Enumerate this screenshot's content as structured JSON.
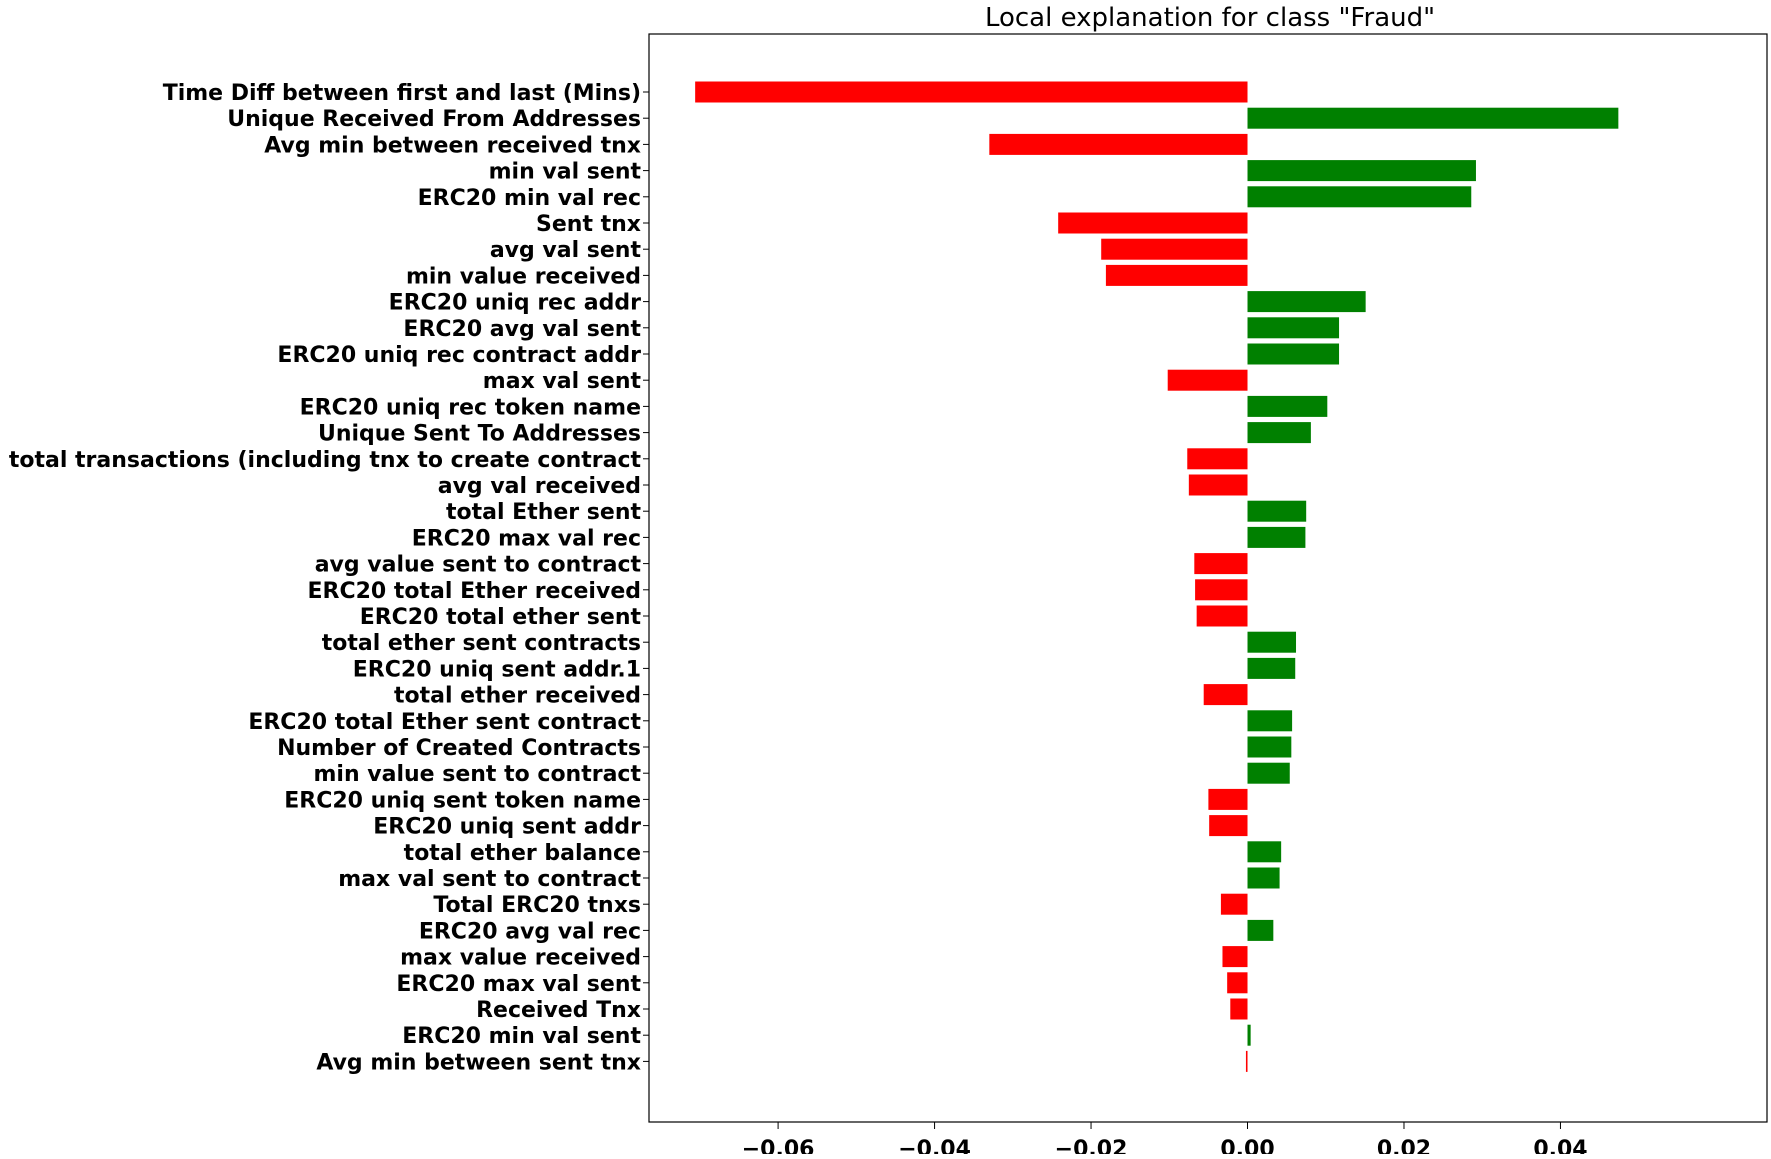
{
  "chart_data": {
    "type": "bar",
    "orientation": "horizontal",
    "title": "Local explanation for class \"Fraud\"",
    "xlabel": "",
    "ylabel": "",
    "xlim": [
      -0.0765,
      0.0664
    ],
    "xticks": [
      -0.06,
      -0.04,
      -0.02,
      0.0,
      0.02,
      0.04
    ],
    "xtick_labels": [
      "−0.06",
      "−0.04",
      "−0.02",
      "0.00",
      "0.02",
      "0.04"
    ],
    "grid": false,
    "colors": {
      "positive": "#008000",
      "negative": "#ff0000"
    },
    "categories": [
      "Time Diff between first and last (Mins)",
      "Unique Received From Addresses",
      "Avg min between received tnx",
      "min val sent",
      "ERC20 min val rec",
      "Sent tnx",
      "avg val sent",
      "min value received",
      "ERC20 uniq rec addr",
      "ERC20 avg val sent",
      "ERC20 uniq rec contract addr",
      "max val sent",
      "ERC20 uniq rec token name",
      "Unique Sent To Addresses",
      "total transactions (including tnx to create contract",
      "avg val received",
      "total Ether sent",
      "ERC20 max val rec",
      "avg value sent to contract",
      "ERC20 total Ether received",
      "ERC20 total ether sent",
      "total ether sent contracts",
      "ERC20 uniq sent addr.1",
      "total ether received",
      "ERC20 total Ether sent contract",
      "Number of Created Contracts",
      "min value sent to contract",
      "ERC20 uniq sent token name",
      "ERC20 uniq sent addr",
      "total ether balance",
      "max val sent to contract",
      "Total ERC20 tnxs",
      "ERC20 avg val rec",
      "max value received ",
      "ERC20 max val sent",
      "Received Tnx",
      "ERC20 min val sent",
      "Avg min between sent tnx"
    ],
    "values": [
      -0.0706,
      0.0474,
      -0.033,
      0.0292,
      0.0286,
      -0.0242,
      -0.0187,
      -0.0181,
      0.0151,
      0.0117,
      0.0117,
      -0.0102,
      0.0102,
      0.0081,
      -0.0077,
      -0.0075,
      0.0075,
      0.0074,
      -0.0068,
      -0.0067,
      -0.0065,
      0.0062,
      0.0061,
      -0.0056,
      0.0057,
      0.0056,
      0.0054,
      -0.005,
      -0.0049,
      0.0043,
      0.0041,
      -0.0034,
      0.0033,
      -0.0032,
      -0.0026,
      -0.0022,
      0.0004,
      -0.0002
    ]
  }
}
